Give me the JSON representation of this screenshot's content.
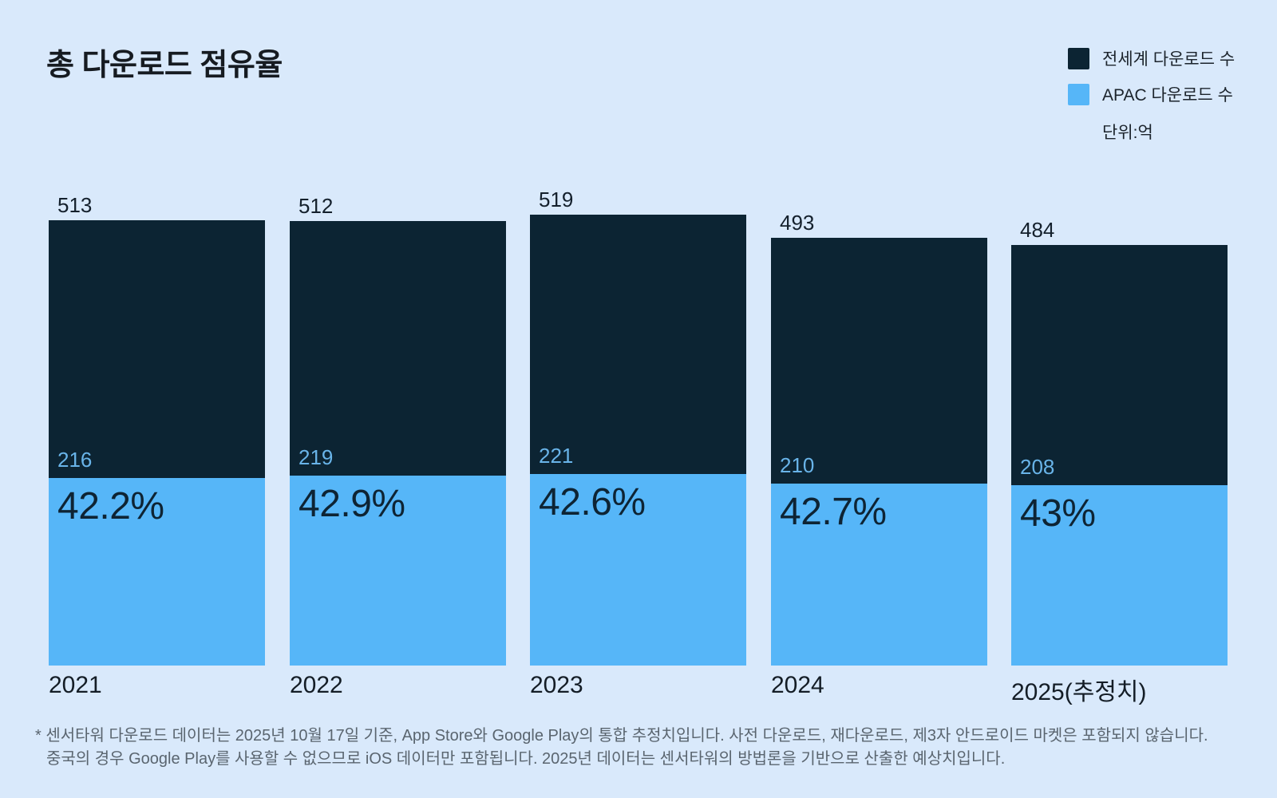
{
  "title": "총 다운로드 점유율",
  "legend": {
    "items": [
      {
        "id": "worldwide",
        "label": "전세계 다운로드 수",
        "color": "#0c2433"
      },
      {
        "id": "apac",
        "label": "APAC 다운로드 수",
        "color": "#56b6f8"
      }
    ],
    "unit_label": "단위:억"
  },
  "chart_data": {
    "type": "bar",
    "variant": "stacked-subset",
    "title": "총 다운로드 점유율",
    "unit": "억",
    "categories": [
      "2021",
      "2022",
      "2023",
      "2024",
      "2025(추정치)"
    ],
    "series": [
      {
        "name": "전세계 다운로드 수",
        "role": "total",
        "color": "#0c2433",
        "values": [
          513,
          512,
          519,
          493,
          484
        ]
      },
      {
        "name": "APAC 다운로드 수",
        "role": "subset",
        "color": "#56b6f8",
        "values": [
          216,
          219,
          221,
          210,
          208
        ]
      }
    ],
    "share_labels": [
      "42.2%",
      "42.9%",
      "42.6%",
      "42.7%",
      "43%"
    ],
    "value_axis": {
      "min": 0,
      "visible": false
    },
    "grid": false,
    "legend_position": "top-right"
  },
  "footnote": {
    "line1": "* 센서타워 다운로드 데이터는 2025년 10월 17일 기준, App Store와 Google Play의 통합 추정치입니다. 사전 다운로드, 재다운로드, 제3자 안드로이드 마켓은 포함되지 않습니다.",
    "line2": "중국의 경우 Google Play를 사용할 수 없으므로 iOS 데이터만 포함됩니다. 2025년 데이터는 센서타워의 방법론을 기반으로 산출한 예상치입니다."
  },
  "colors": {
    "background": "#d9e9fb",
    "worldwide_bar": "#0c2433",
    "apac_bar": "#56b6f8",
    "dark_text": "#14202c",
    "apac_value_text": "#69b4e9",
    "footnote_text": "#5a656f"
  }
}
